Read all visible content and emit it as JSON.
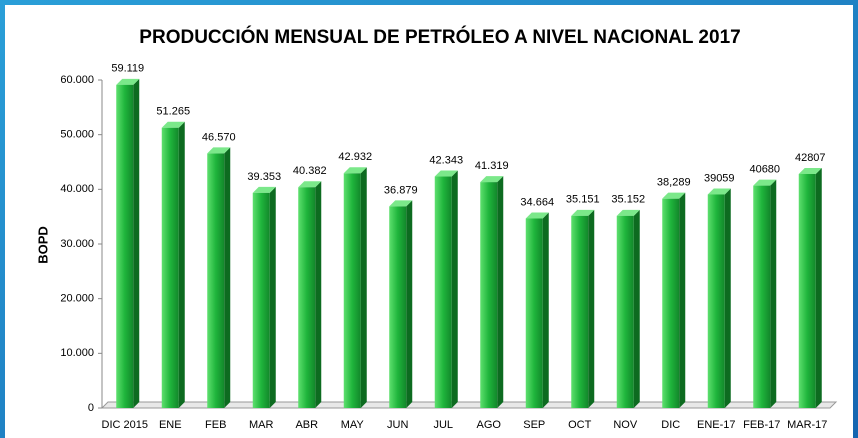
{
  "chart_data": {
    "type": "bar3d",
    "title": "PRODUCCIÓN MENSUAL DE PETRÓLEO A NIVEL NACIONAL 2017",
    "y_label": "BOPD",
    "categories": [
      "DIC 2015",
      "ENE",
      "FEB",
      "MAR",
      "ABR",
      "MAY",
      "JUN",
      "JUL",
      "AGO",
      "SEP",
      "OCT",
      "NOV",
      "DIC",
      "ENE-17",
      "FEB-17",
      "MAR-17"
    ],
    "values": [
      59119,
      51265,
      46570,
      39353,
      40382,
      42932,
      36879,
      42343,
      41319,
      34664,
      35151,
      35152,
      38289,
      39059,
      40680,
      42807
    ],
    "value_labels": [
      "59.119",
      "51.265",
      "46.570",
      "39.353",
      "40.382",
      "42.932",
      "36.879",
      "42.343",
      "41.319",
      "34.664",
      "35.151",
      "35.152",
      "38,289",
      "39059",
      "40680",
      "42807"
    ],
    "color": "#1fb53c",
    "ylim": [
      0,
      60000
    ],
    "yticks": [
      0,
      {
        "value": 10000,
        "label": "10.000"
      },
      {
        "value": 20000,
        "label": "20.000"
      },
      {
        "value": 30000,
        "label": "30.000"
      },
      {
        "value": 40000,
        "label": "40.000"
      },
      {
        "value": 50000,
        "label": "50.000"
      },
      {
        "value": 60000,
        "label": "60.000"
      }
    ]
  }
}
